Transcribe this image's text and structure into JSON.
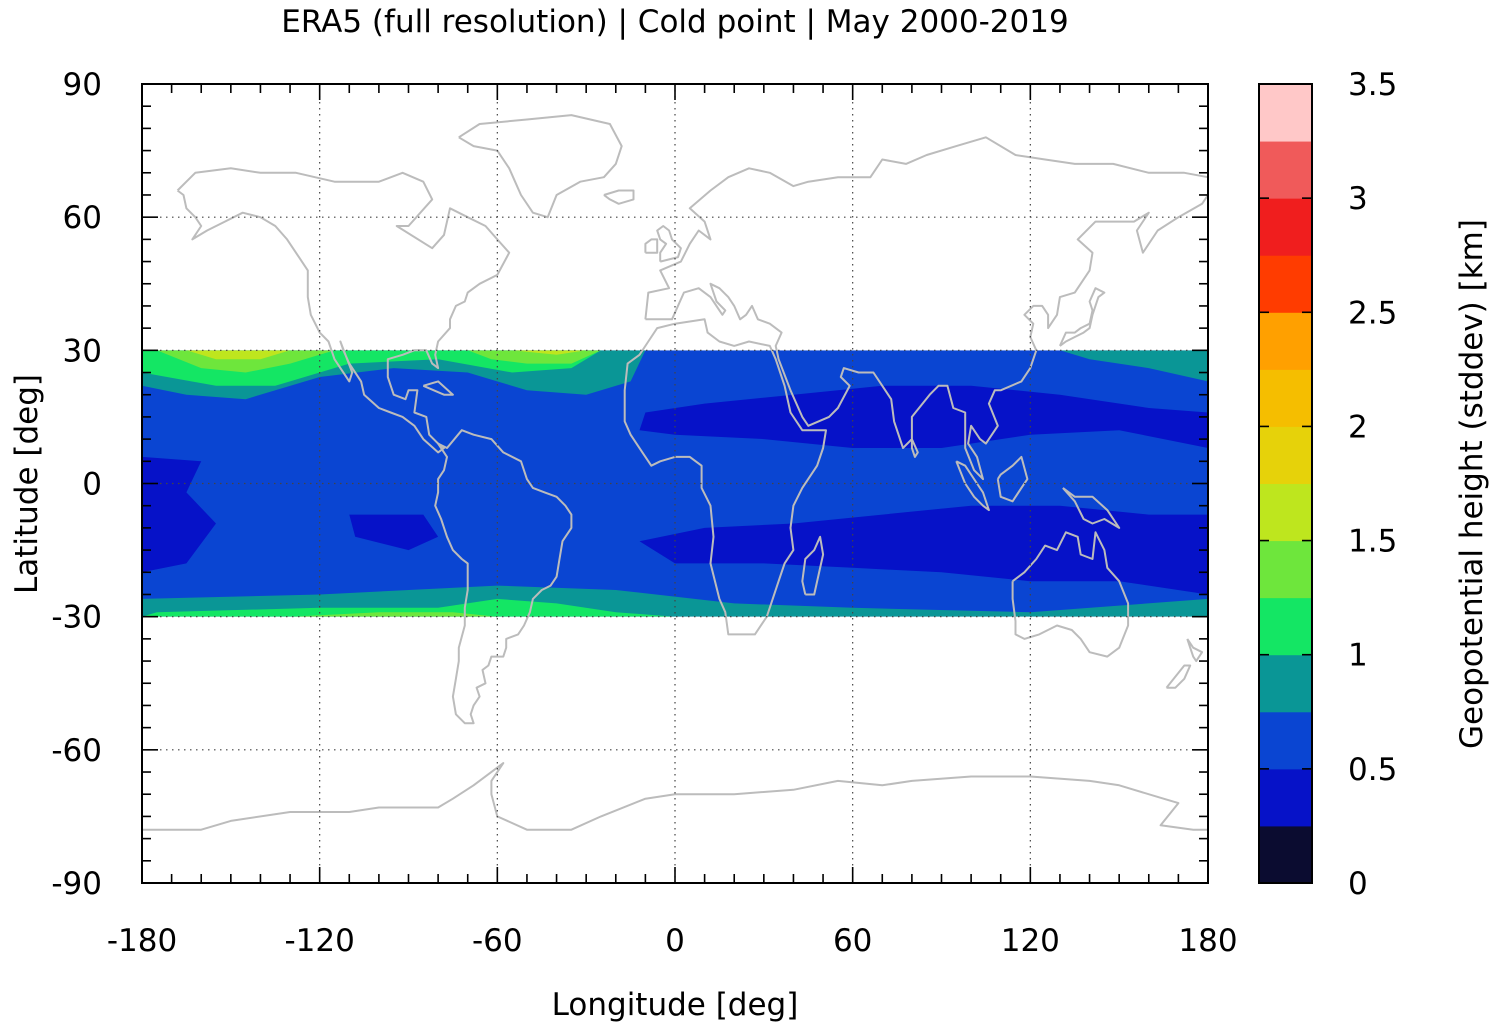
{
  "chart_data": {
    "type": "heatmap",
    "title": "ERA5 (full resolution) | Cold point | May 2000-2019",
    "xlabel": "Longitude [deg]",
    "ylabel": "Latitude [deg]",
    "xlim": [
      -180,
      180
    ],
    "ylim": [
      -90,
      90
    ],
    "xticks": [
      "-180",
      "-120",
      "-60",
      "0",
      "60",
      "120",
      "180"
    ],
    "yticks": [
      "90",
      "60",
      "30",
      "0",
      "-30",
      "-60",
      "-90"
    ],
    "grid": true,
    "data_lat_range": [
      -30,
      30
    ],
    "colorbar": {
      "label": "Geopotential height (stddev) [km]",
      "range": [
        0,
        3.5
      ],
      "ticks": [
        "0",
        "0.5",
        "1",
        "1.5",
        "2",
        "2.5",
        "3",
        "3.5"
      ],
      "bins": [
        {
          "min": 0.0,
          "max": 0.25,
          "color": "#0b0c30"
        },
        {
          "min": 0.25,
          "max": 0.5,
          "color": "#0612c8"
        },
        {
          "min": 0.5,
          "max": 0.75,
          "color": "#0a45d2"
        },
        {
          "min": 0.75,
          "max": 1.0,
          "color": "#0a9696"
        },
        {
          "min": 1.0,
          "max": 1.25,
          "color": "#14e664"
        },
        {
          "min": 1.25,
          "max": 1.5,
          "color": "#6ee63c"
        },
        {
          "min": 1.5,
          "max": 1.75,
          "color": "#bee61e"
        },
        {
          "min": 1.75,
          "max": 2.0,
          "color": "#e6d20a"
        },
        {
          "min": 2.0,
          "max": 2.25,
          "color": "#f5be00"
        },
        {
          "min": 2.25,
          "max": 2.5,
          "color": "#ffa000"
        },
        {
          "min": 2.5,
          "max": 2.75,
          "color": "#ff3c00"
        },
        {
          "min": 2.75,
          "max": 3.0,
          "color": "#f01e1e"
        },
        {
          "min": 3.0,
          "max": 3.25,
          "color": "#f05a5a"
        },
        {
          "min": 3.25,
          "max": 3.5,
          "color": "#ffc8c8"
        }
      ]
    },
    "regions": [
      {
        "name": "band-background",
        "value": 0.6,
        "points": [
          [
            -180,
            30
          ],
          [
            180,
            30
          ],
          [
            180,
            -30
          ],
          [
            -180,
            -30
          ]
        ]
      },
      {
        "name": "north-pacific-high",
        "value": 0.85,
        "points": [
          [
            -180,
            30
          ],
          [
            -10,
            30
          ],
          [
            -15,
            23
          ],
          [
            -30,
            20
          ],
          [
            -50,
            21
          ],
          [
            -70,
            25
          ],
          [
            -95,
            26
          ],
          [
            -120,
            24
          ],
          [
            -145,
            19
          ],
          [
            -165,
            20
          ],
          [
            -180,
            22
          ]
        ]
      },
      {
        "name": "north-pacific-higher",
        "value": 1.1,
        "points": [
          [
            -180,
            30
          ],
          [
            -25,
            30
          ],
          [
            -35,
            26
          ],
          [
            -55,
            25
          ],
          [
            -80,
            28
          ],
          [
            -110,
            27
          ],
          [
            -135,
            22
          ],
          [
            -155,
            22
          ],
          [
            -180,
            25
          ]
        ]
      },
      {
        "name": "north-pacific-peak",
        "value": 1.4,
        "points": [
          [
            -175,
            30
          ],
          [
            -115,
            30
          ],
          [
            -130,
            27
          ],
          [
            -145,
            25
          ],
          [
            -160,
            26
          ]
        ]
      },
      {
        "name": "north-atlantic-peak",
        "value": 1.4,
        "points": [
          [
            -70,
            30
          ],
          [
            -25,
            30
          ],
          [
            -35,
            27
          ],
          [
            -50,
            27
          ],
          [
            -62,
            28
          ]
        ]
      },
      {
        "name": "north-pacific-max",
        "value": 1.6,
        "points": [
          [
            -165,
            30
          ],
          [
            -130,
            30
          ],
          [
            -140,
            28
          ],
          [
            -155,
            28
          ]
        ]
      },
      {
        "name": "north-atlantic-max",
        "value": 1.6,
        "points": [
          [
            -55,
            30
          ],
          [
            -30,
            30
          ],
          [
            -40,
            29
          ]
        ]
      },
      {
        "name": "north-east-edge",
        "value": 0.85,
        "points": [
          [
            130,
            30
          ],
          [
            180,
            30
          ],
          [
            180,
            23
          ],
          [
            160,
            26
          ],
          [
            140,
            28
          ]
        ]
      },
      {
        "name": "south-band-high",
        "value": 0.85,
        "points": [
          [
            -180,
            -26
          ],
          [
            -120,
            -25
          ],
          [
            -60,
            -23
          ],
          [
            -20,
            -24
          ],
          [
            20,
            -27
          ],
          [
            60,
            -28
          ],
          [
            120,
            -29
          ],
          [
            180,
            -26
          ],
          [
            180,
            -30
          ],
          [
            -180,
            -30
          ]
        ]
      },
      {
        "name": "south-band-higher",
        "value": 1.1,
        "points": [
          [
            -175,
            -29
          ],
          [
            -120,
            -28
          ],
          [
            -80,
            -28
          ],
          [
            -60,
            -26
          ],
          [
            -40,
            -27
          ],
          [
            -20,
            -29
          ],
          [
            0,
            -30
          ],
          [
            -180,
            -30
          ]
        ]
      },
      {
        "name": "south-pacific-peak",
        "value": 1.4,
        "points": [
          [
            -130,
            -30
          ],
          [
            -100,
            -29
          ],
          [
            -75,
            -29
          ],
          [
            -60,
            -30
          ]
        ]
      },
      {
        "name": "north-africa-low",
        "value": 0.4,
        "points": [
          [
            -10,
            16
          ],
          [
            10,
            18
          ],
          [
            40,
            20
          ],
          [
            70,
            22
          ],
          [
            100,
            22
          ],
          [
            130,
            20
          ],
          [
            160,
            17
          ],
          [
            180,
            16
          ],
          [
            180,
            8
          ],
          [
            150,
            12
          ],
          [
            120,
            11
          ],
          [
            90,
            8
          ],
          [
            60,
            8
          ],
          [
            30,
            10
          ],
          [
            0,
            11
          ],
          [
            -12,
            12
          ]
        ]
      },
      {
        "name": "south-indian-low",
        "value": 0.4,
        "points": [
          [
            -12,
            -13
          ],
          [
            10,
            -10
          ],
          [
            40,
            -9
          ],
          [
            70,
            -7
          ],
          [
            100,
            -5
          ],
          [
            130,
            -5
          ],
          [
            160,
            -7
          ],
          [
            180,
            -7
          ],
          [
            180,
            -25
          ],
          [
            150,
            -22
          ],
          [
            120,
            -22
          ],
          [
            90,
            -20
          ],
          [
            60,
            -19
          ],
          [
            30,
            -18
          ],
          [
            0,
            -18
          ]
        ]
      },
      {
        "name": "east-pacific-low",
        "value": 0.4,
        "points": [
          [
            -180,
            6
          ],
          [
            -160,
            5
          ],
          [
            -165,
            -2
          ],
          [
            -155,
            -9
          ],
          [
            -165,
            -18
          ],
          [
            -180,
            -20
          ]
        ]
      },
      {
        "name": "south-america-low",
        "value": 0.4,
        "points": [
          [
            -110,
            -7
          ],
          [
            -85,
            -7
          ],
          [
            -80,
            -12
          ],
          [
            -90,
            -15
          ],
          [
            -108,
            -12
          ]
        ]
      }
    ]
  }
}
